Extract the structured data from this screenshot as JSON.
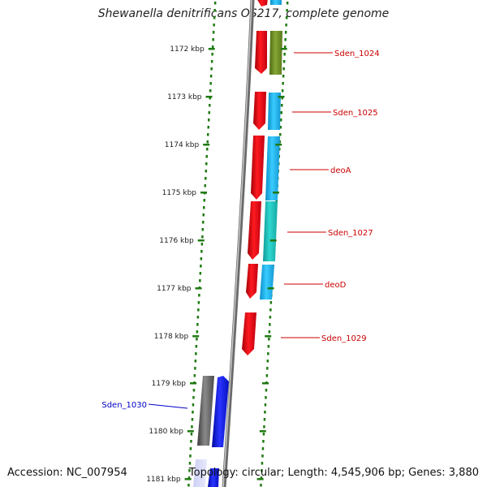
{
  "title": "Shewanella denitrificans OS217, complete genome",
  "footer": {
    "accession": "Accession: NC_007954",
    "topology": "Topology: circular; Length: 4,545,906 bp; Genes: 3,880"
  },
  "ticks": [
    "1172 kbp",
    "1173 kbp",
    "1174 kbp",
    "1175 kbp",
    "1176 kbp",
    "1177 kbp",
    "1178 kbp",
    "1179 kbp",
    "1180 kbp",
    "1181 kbp"
  ],
  "gene_labels": [
    "Sden_1024",
    "Sden_1025",
    "deoA",
    "Sden_1027",
    "deoD",
    "Sden_1029",
    "Sden_1030"
  ],
  "colors": {
    "forward_cds": "#e8000e",
    "cog_green": "#6e8c24",
    "cog_cyan": "#19b6f0",
    "cog_teal": "#1fc4c0",
    "reverse_cds": "#0b14e8",
    "reverse_cog_gray": "#6c6c6c",
    "backbone": "#8a8a8a",
    "tick_green": "#1f7a12",
    "label_red": "#cc0000",
    "label_blue": "#0000c8"
  }
}
